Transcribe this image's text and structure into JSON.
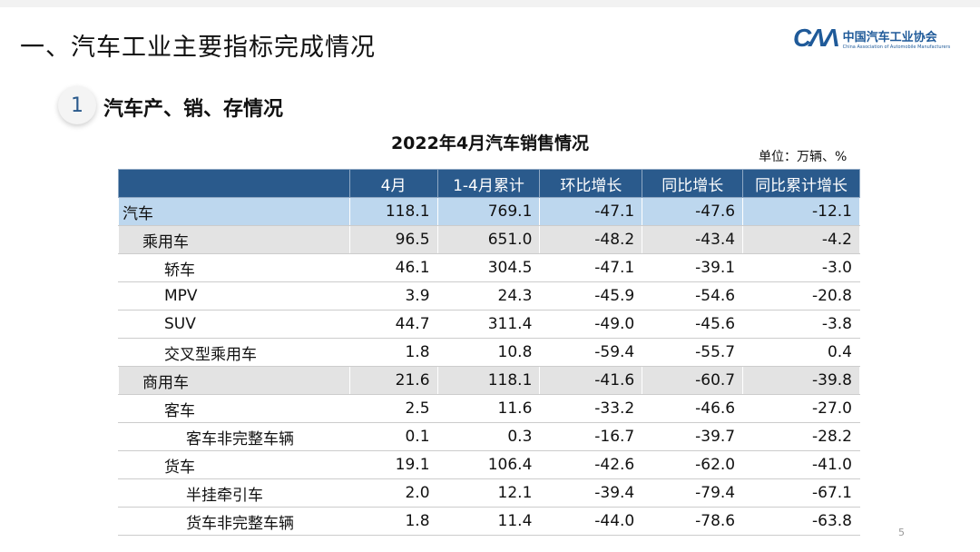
{
  "header": {
    "title": "一、汽车工业主要指标完成情况",
    "logo_cn": "中国汽车工业协会",
    "logo_en": "China Association of Automobile Manufacturers",
    "logo_mark": "CAM"
  },
  "section": {
    "number": "1",
    "title": "汽车产、销、存情况"
  },
  "table": {
    "title": "2022年4月汽车销售情况",
    "unit": "单位：万辆、%",
    "columns": [
      "",
      "4月",
      "1-4月累计",
      "环比增长",
      "同比增长",
      "同比累计增长"
    ],
    "rows": [
      {
        "label": "汽车",
        "level": 0,
        "values": [
          "118.1",
          "769.1",
          "-47.1",
          "-47.6",
          "-12.1"
        ]
      },
      {
        "label": "乘用车",
        "level": 1,
        "values": [
          "96.5",
          "651.0",
          "-48.2",
          "-43.4",
          "-4.2"
        ]
      },
      {
        "label": "轿车",
        "level": 2,
        "values": [
          "46.1",
          "304.5",
          "-47.1",
          "-39.1",
          "-3.0"
        ]
      },
      {
        "label": "MPV",
        "level": 2,
        "values": [
          "3.9",
          "24.3",
          "-45.9",
          "-54.6",
          "-20.8"
        ]
      },
      {
        "label": "SUV",
        "level": 2,
        "values": [
          "44.7",
          "311.4",
          "-49.0",
          "-45.6",
          "-3.8"
        ]
      },
      {
        "label": "交叉型乘用车",
        "level": 2,
        "values": [
          "1.8",
          "10.8",
          "-59.4",
          "-55.7",
          "0.4"
        ]
      },
      {
        "label": "商用车",
        "level": 1,
        "values": [
          "21.6",
          "118.1",
          "-41.6",
          "-60.7",
          "-39.8"
        ]
      },
      {
        "label": "客车",
        "level": 2,
        "values": [
          "2.5",
          "11.6",
          "-33.2",
          "-46.6",
          "-27.0"
        ]
      },
      {
        "label": "客车非完整车辆",
        "level": 3,
        "values": [
          "0.1",
          "0.3",
          "-16.7",
          "-39.7",
          "-28.2"
        ]
      },
      {
        "label": "货车",
        "level": 2,
        "values": [
          "19.1",
          "106.4",
          "-42.6",
          "-62.0",
          "-41.0"
        ]
      },
      {
        "label": "半挂牵引车",
        "level": 3,
        "values": [
          "2.0",
          "12.1",
          "-39.4",
          "-79.4",
          "-67.1"
        ]
      },
      {
        "label": "货车非完整车辆",
        "level": 3,
        "values": [
          "1.8",
          "11.4",
          "-44.0",
          "-78.6",
          "-63.8"
        ]
      }
    ]
  },
  "page_number": "5",
  "colors": {
    "header_blue": "#2a5a8c",
    "total_row": "#bdd7ee",
    "category_row": "#e3e3e3"
  }
}
